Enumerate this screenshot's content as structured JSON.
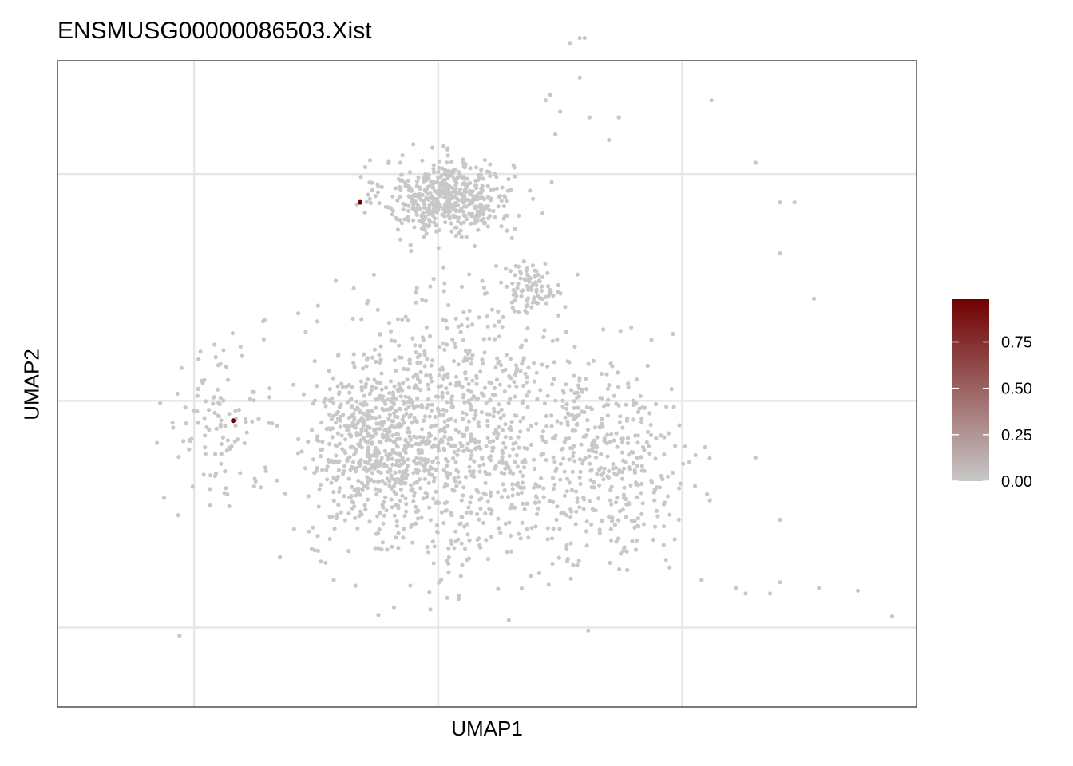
{
  "chart_data": {
    "type": "scatter",
    "title": "ENSMUSG00000086503.Xist",
    "xlabel": "UMAP1",
    "ylabel": "UMAP2",
    "xlim": [
      -8.8,
      8.8
    ],
    "ylim": [
      -5.4,
      6.0
    ],
    "grid": true,
    "x_gridlines": [
      -6,
      -1,
      4
    ],
    "y_gridlines": [
      -4,
      0,
      4
    ],
    "axis_tick_labels_shown": false,
    "color_scale": {
      "low_color": "#c8c8c8",
      "high_color": "#700000",
      "min": 0,
      "max": 0.98,
      "legend_position": "right",
      "legend_ticks": [
        "0.00",
        "0.25",
        "0.50",
        "0.75"
      ]
    },
    "point_color_default": "#c8c8c8",
    "expressing_cells": [
      {
        "x": -2.6,
        "y": 3.5,
        "value": 0.98
      },
      {
        "x": -5.2,
        "y": -0.35,
        "value": 0.98
      }
    ],
    "background_cells_approximate": {
      "note_clusters": [
        {
          "name": "dense-top-cluster",
          "center": [
            -0.8,
            3.6
          ],
          "spread": [
            1.2,
            0.6
          ],
          "n": 520
        },
        {
          "name": "top-tail",
          "center": [
            0.9,
            2.0
          ],
          "spread": [
            0.6,
            0.4
          ],
          "n": 90
        },
        {
          "name": "left-dense",
          "center": [
            -2.2,
            -0.8
          ],
          "spread": [
            1.2,
            1.2
          ],
          "n": 480
        },
        {
          "name": "central-diffuse",
          "center": [
            -0.7,
            -0.6
          ],
          "spread": [
            2.6,
            2.3
          ],
          "n": 900
        },
        {
          "name": "right-diffuse",
          "center": [
            2.5,
            -1.2
          ],
          "spread": [
            1.6,
            1.6
          ],
          "n": 360
        },
        {
          "name": "far-left",
          "center": [
            -5.6,
            -0.4
          ],
          "spread": [
            1.0,
            1.2
          ],
          "n": 110
        }
      ],
      "outliers": [
        [
          1.9,
          6.4
        ],
        [
          2.0,
          6.4
        ],
        [
          1.7,
          6.3
        ],
        [
          1.9,
          5.7
        ],
        [
          1.3,
          5.4
        ],
        [
          2.1,
          5.0
        ],
        [
          4.6,
          5.3
        ],
        [
          5.5,
          4.2
        ],
        [
          6.0,
          2.6
        ],
        [
          6.7,
          1.8
        ],
        [
          8.3,
          -3.8
        ],
        [
          5.5,
          -1.0
        ],
        [
          6.0,
          -2.1
        ],
        [
          6.0,
          -3.2
        ],
        [
          5.1,
          -3.3
        ],
        [
          5.3,
          -3.4
        ],
        [
          5.8,
          -3.4
        ],
        [
          6.8,
          -3.3
        ],
        [
          7.6,
          -3.35
        ],
        [
          6.3,
          3.5
        ],
        [
          6.0,
          3.5
        ],
        [
          2.7,
          5.0
        ],
        [
          2.5,
          4.6
        ],
        [
          1.2,
          5.3
        ],
        [
          1.5,
          5.1
        ],
        [
          1.4,
          4.7
        ]
      ]
    }
  }
}
